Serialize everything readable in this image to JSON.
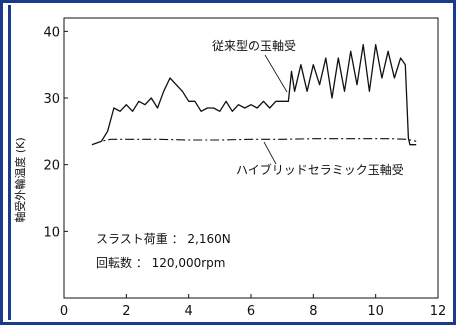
{
  "chart_data": {
    "type": "line",
    "ylabel": "軸受外輪温度 (K)",
    "xlabel": "",
    "xlim": [
      0,
      12
    ],
    "ylim": [
      0,
      42
    ],
    "x_ticks": [
      "0",
      "2",
      "4",
      "6",
      "8",
      "10",
      "12"
    ],
    "y_ticks": [
      "10",
      "20",
      "30",
      "40"
    ],
    "grid": false,
    "annotations": [
      {
        "id": "conventional",
        "text": "従来型の玉軸受"
      },
      {
        "id": "hybrid",
        "text": "ハイブリッドセラミック玉軸受"
      },
      {
        "id": "load",
        "text": "スラスト荷重 ： 2,160N"
      },
      {
        "id": "speed",
        "text": "回転数 ： 120,000rpm"
      }
    ],
    "series": [
      {
        "id": "conventional",
        "style": "solid",
        "x": [
          0.9,
          1.2,
          1.4,
          1.6,
          1.8,
          2.0,
          2.2,
          2.4,
          2.6,
          2.8,
          3.0,
          3.2,
          3.4,
          3.6,
          3.8,
          4.0,
          4.2,
          4.4,
          4.6,
          4.8,
          5.0,
          5.2,
          5.4,
          5.6,
          5.8,
          6.0,
          6.2,
          6.4,
          6.6,
          6.8,
          7.0,
          7.2,
          7.3,
          7.4,
          7.6,
          7.8,
          8.0,
          8.2,
          8.4,
          8.6,
          8.8,
          9.0,
          9.2,
          9.4,
          9.6,
          9.8,
          10.0,
          10.2,
          10.4,
          10.6,
          10.8,
          10.95,
          11.05,
          11.1,
          11.3
        ],
        "y": [
          23,
          23.5,
          25,
          28.5,
          28,
          29,
          28,
          29.5,
          29,
          30,
          28.5,
          31,
          33,
          32,
          31,
          29.5,
          29.5,
          28,
          28.5,
          28.5,
          28,
          29.5,
          28,
          29,
          28.5,
          29,
          28.5,
          29.5,
          28.5,
          29.5,
          29.5,
          29.5,
          34,
          31,
          35,
          31,
          35,
          32,
          36,
          30,
          36,
          31,
          37,
          32,
          38,
          31,
          38,
          33,
          37,
          33,
          36,
          35,
          24,
          23,
          23
        ]
      },
      {
        "id": "hybrid",
        "style": "dash-dot",
        "x": [
          0.9,
          1.2,
          1.5,
          2.0,
          3.0,
          4.0,
          5.0,
          6.0,
          7.0,
          8.0,
          9.0,
          10.0,
          10.5,
          11.0,
          11.3
        ],
        "y": [
          23,
          23.5,
          23.8,
          23.8,
          23.8,
          23.7,
          23.7,
          23.8,
          23.8,
          23.9,
          23.9,
          23.9,
          23.9,
          23.8,
          23.5
        ]
      }
    ]
  }
}
